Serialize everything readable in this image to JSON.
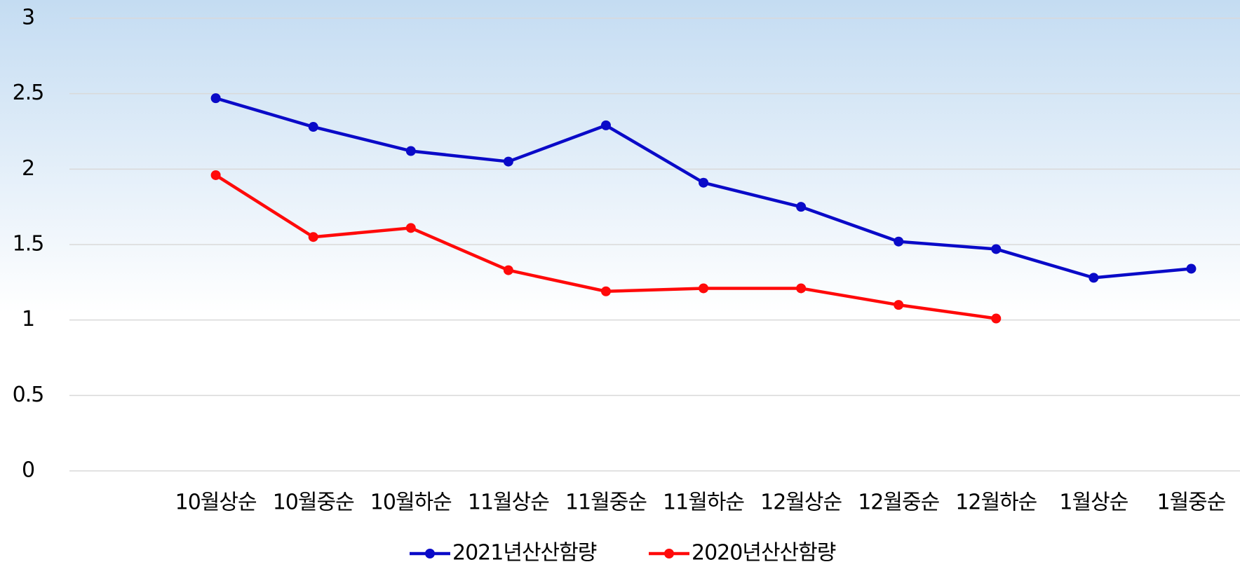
{
  "chart_data": {
    "type": "line",
    "categories": [
      null,
      "10월상순",
      "10월중순",
      "10월하순",
      "11월상순",
      "11월중순",
      "11월하순",
      "12월상순",
      "12월중순",
      "12월하순",
      "1월상순",
      "1월중순"
    ],
    "series": [
      {
        "name": "2021년산산함량",
        "color": "#0a0ac8",
        "values": [
          null,
          2.47,
          2.28,
          2.12,
          2.05,
          2.29,
          1.91,
          1.75,
          1.52,
          1.47,
          1.28,
          1.34
        ]
      },
      {
        "name": "2020년산산함량",
        "color": "#ff0a0a",
        "values": [
          null,
          1.96,
          1.55,
          1.61,
          1.33,
          1.19,
          1.21,
          1.21,
          1.1,
          1.01,
          null,
          null
        ]
      }
    ],
    "ylim": [
      0,
      3
    ],
    "yticks": [
      0,
      0.5,
      1,
      1.5,
      2,
      2.5,
      3
    ],
    "grid": true,
    "legend": "bottom"
  }
}
